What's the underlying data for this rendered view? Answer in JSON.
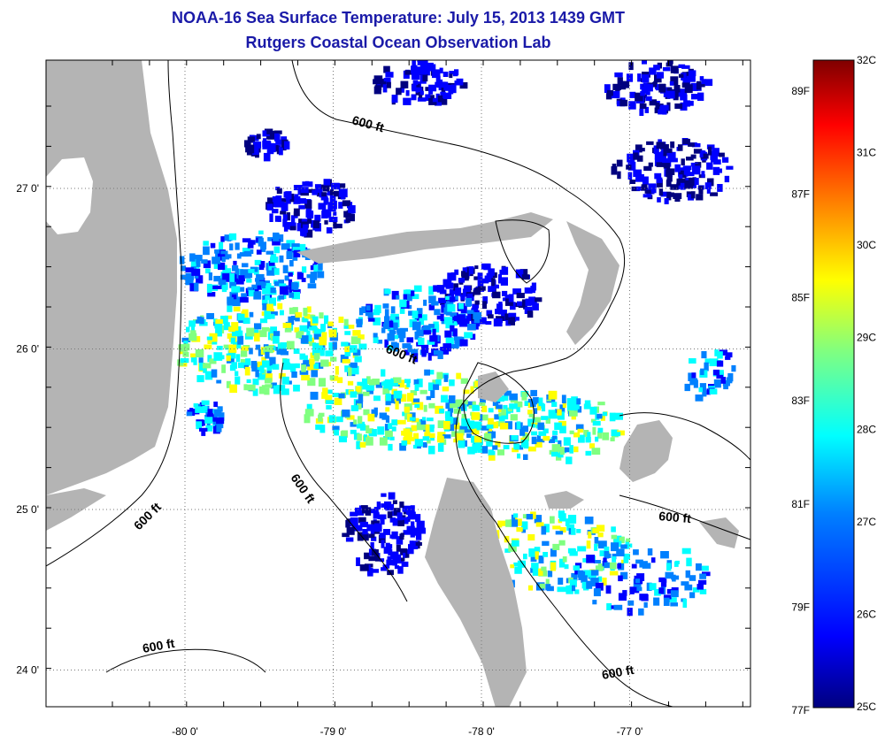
{
  "title": {
    "line1": "NOAA-16 Sea Surface Temperature:  July 15, 2013 1439 GMT",
    "line2": "Rutgers Coastal Ocean Observation Lab"
  },
  "map": {
    "lon_ticks": [
      {
        "value": -80,
        "label": "-80 0'"
      },
      {
        "value": -79,
        "label": "-79 0'"
      },
      {
        "value": -78,
        "label": "-78 0'"
      },
      {
        "value": -77,
        "label": "-77 0'"
      }
    ],
    "lat_ticks": [
      {
        "value": 27,
        "label": "27 0'"
      },
      {
        "value": 26,
        "label": "26 0'"
      },
      {
        "value": 25,
        "label": "25 0'"
      },
      {
        "value": 24,
        "label": "24 0'"
      }
    ],
    "contour_label": "600 ft",
    "colors": {
      "land": "#b4b4b4",
      "ocean_no_data": "#ffffff",
      "grid": "#777777"
    }
  },
  "colorbar": {
    "celsius_labels": [
      "32C",
      "31C",
      "30C",
      "29C",
      "28C",
      "27C",
      "26C",
      "25C"
    ],
    "fahrenheit_labels": [
      "89F",
      "87F",
      "85F",
      "83F",
      "81F",
      "79F",
      "77F"
    ],
    "scale": [
      "#00007f",
      "#0000ff",
      "#0080ff",
      "#00ffff",
      "#80ff80",
      "#ffff00",
      "#ff8000",
      "#ff0000",
      "#7f0000"
    ]
  }
}
